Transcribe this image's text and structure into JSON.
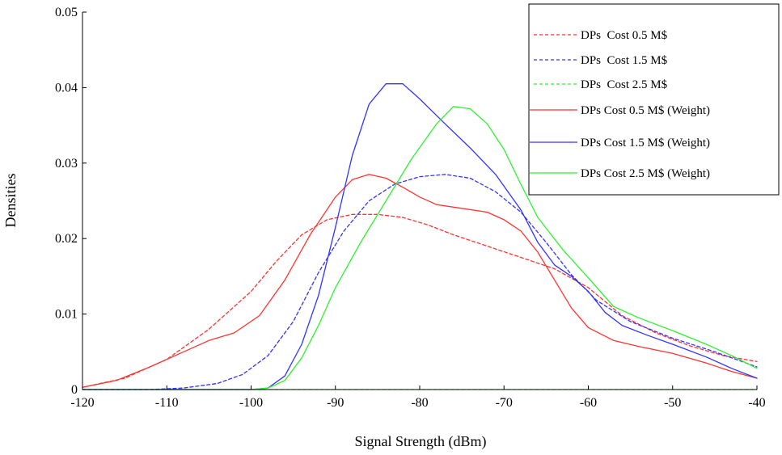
{
  "chart_data": {
    "type": "line",
    "title": "",
    "xlabel": "Signal Strength (dBm)",
    "ylabel": "Densities",
    "xlim": [
      -120,
      -40
    ],
    "ylim": [
      0,
      0.05
    ],
    "x_ticks": [
      -120,
      -110,
      -100,
      -90,
      -80,
      -70,
      -60,
      -50,
      -40
    ],
    "x_tick_labels": [
      "-120",
      "-110",
      "-100",
      "-90",
      "-80",
      "-70",
      "-60",
      "-50",
      "-40"
    ],
    "y_ticks": [
      0,
      0.01,
      0.02,
      0.03,
      0.04,
      0.05
    ],
    "y_tick_labels": [
      "0",
      "0.01",
      "0.02",
      "0.03",
      "0.04",
      "0.05"
    ],
    "grid": false,
    "legend_position": "top-right",
    "series": [
      {
        "name": "DPs  Cost 0.5 M$",
        "color": "#ff3333",
        "dashed": true,
        "points": [
          [
            -120,
            0.0003
          ],
          [
            -115,
            0.0015
          ],
          [
            -110,
            0.004
          ],
          [
            -105,
            0.008
          ],
          [
            -100,
            0.013
          ],
          [
            -97,
            0.017
          ],
          [
            -94,
            0.0205
          ],
          [
            -91,
            0.0225
          ],
          [
            -88,
            0.0232
          ],
          [
            -85,
            0.0232
          ],
          [
            -82,
            0.0228
          ],
          [
            -79,
            0.0218
          ],
          [
            -76,
            0.0205
          ],
          [
            -72,
            0.019
          ],
          [
            -68,
            0.0175
          ],
          [
            -64,
            0.016
          ],
          [
            -60,
            0.0135
          ],
          [
            -56,
            0.0098
          ],
          [
            -52,
            0.0075
          ],
          [
            -48,
            0.0058
          ],
          [
            -44,
            0.0045
          ],
          [
            -40,
            0.0037
          ]
        ]
      },
      {
        "name": "DPs  Cost 1.5 M$",
        "color": "#3333ff",
        "dashed": true,
        "points": [
          [
            -120,
            0
          ],
          [
            -112,
            0
          ],
          [
            -108,
            0.0002
          ],
          [
            -104,
            0.0008
          ],
          [
            -101,
            0.002
          ],
          [
            -98,
            0.0045
          ],
          [
            -95,
            0.009
          ],
          [
            -92,
            0.0155
          ],
          [
            -89,
            0.021
          ],
          [
            -86,
            0.025
          ],
          [
            -83,
            0.0272
          ],
          [
            -80,
            0.0282
          ],
          [
            -77,
            0.0285
          ],
          [
            -74,
            0.028
          ],
          [
            -71,
            0.0262
          ],
          [
            -68,
            0.0235
          ],
          [
            -65,
            0.0195
          ],
          [
            -62,
            0.0152
          ],
          [
            -59,
            0.0118
          ],
          [
            -55,
            0.009
          ],
          [
            -50,
            0.0068
          ],
          [
            -45,
            0.005
          ],
          [
            -40,
            0.003
          ]
        ]
      },
      {
        "name": "DPs  Cost 2.5 M$",
        "color": "#33ee33",
        "dashed": true,
        "points": [
          [
            -120,
            0
          ],
          [
            -40,
            0
          ]
        ]
      },
      {
        "name": "DPs Cost 0.5 M$ (Weight)",
        "color": "#ff3333",
        "dashed": false,
        "points": [
          [
            -120,
            0.0003
          ],
          [
            -116,
            0.0012
          ],
          [
            -112,
            0.003
          ],
          [
            -108,
            0.005
          ],
          [
            -105,
            0.0065
          ],
          [
            -102,
            0.0075
          ],
          [
            -99,
            0.0098
          ],
          [
            -96,
            0.0145
          ],
          [
            -93,
            0.0205
          ],
          [
            -90,
            0.0255
          ],
          [
            -88,
            0.0278
          ],
          [
            -86,
            0.0285
          ],
          [
            -84,
            0.028
          ],
          [
            -82,
            0.0268
          ],
          [
            -80,
            0.0255
          ],
          [
            -78,
            0.0245
          ],
          [
            -75,
            0.024
          ],
          [
            -72,
            0.0235
          ],
          [
            -70,
            0.0225
          ],
          [
            -68,
            0.021
          ],
          [
            -66,
            0.0182
          ],
          [
            -64,
            0.0145
          ],
          [
            -62,
            0.0108
          ],
          [
            -60,
            0.0082
          ],
          [
            -57,
            0.0065
          ],
          [
            -54,
            0.0057
          ],
          [
            -50,
            0.0048
          ],
          [
            -46,
            0.0035
          ],
          [
            -43,
            0.0024
          ],
          [
            -40,
            0.0015
          ]
        ]
      },
      {
        "name": "DPs Cost 1.5 M$ (Weight)",
        "color": "#3333ff",
        "dashed": false,
        "points": [
          [
            -120,
            0
          ],
          [
            -100,
            0
          ],
          [
            -98,
            0.0002
          ],
          [
            -96,
            0.0018
          ],
          [
            -94,
            0.006
          ],
          [
            -92,
            0.0125
          ],
          [
            -90,
            0.0215
          ],
          [
            -88,
            0.031
          ],
          [
            -86,
            0.0378
          ],
          [
            -84,
            0.0405
          ],
          [
            -82,
            0.0405
          ],
          [
            -80,
            0.0385
          ],
          [
            -77,
            0.0352
          ],
          [
            -74,
            0.032
          ],
          [
            -71,
            0.0285
          ],
          [
            -68,
            0.0238
          ],
          [
            -66,
            0.0195
          ],
          [
            -64,
            0.0165
          ],
          [
            -62,
            0.015
          ],
          [
            -60,
            0.013
          ],
          [
            -58,
            0.0102
          ],
          [
            -56,
            0.0085
          ],
          [
            -53,
            0.0072
          ],
          [
            -50,
            0.006
          ],
          [
            -46,
            0.0043
          ],
          [
            -43,
            0.0028
          ],
          [
            -40,
            0.0015
          ]
        ]
      },
      {
        "name": "DPs Cost 2.5 M$ (Weight)",
        "color": "#33ee33",
        "dashed": false,
        "points": [
          [
            -120,
            0
          ],
          [
            -100,
            0
          ],
          [
            -98,
            0.0002
          ],
          [
            -96,
            0.0012
          ],
          [
            -94,
            0.0042
          ],
          [
            -92,
            0.0085
          ],
          [
            -90,
            0.0135
          ],
          [
            -87,
            0.0195
          ],
          [
            -84,
            0.025
          ],
          [
            -81,
            0.0305
          ],
          [
            -78,
            0.0352
          ],
          [
            -76,
            0.0375
          ],
          [
            -74,
            0.0372
          ],
          [
            -72,
            0.0352
          ],
          [
            -70,
            0.0318
          ],
          [
            -68,
            0.0272
          ],
          [
            -66,
            0.0228
          ],
          [
            -63,
            0.0185
          ],
          [
            -60,
            0.0148
          ],
          [
            -57,
            0.011
          ],
          [
            -54,
            0.0095
          ],
          [
            -50,
            0.0078
          ],
          [
            -46,
            0.006
          ],
          [
            -43,
            0.0045
          ],
          [
            -40,
            0.0028
          ]
        ]
      }
    ]
  }
}
